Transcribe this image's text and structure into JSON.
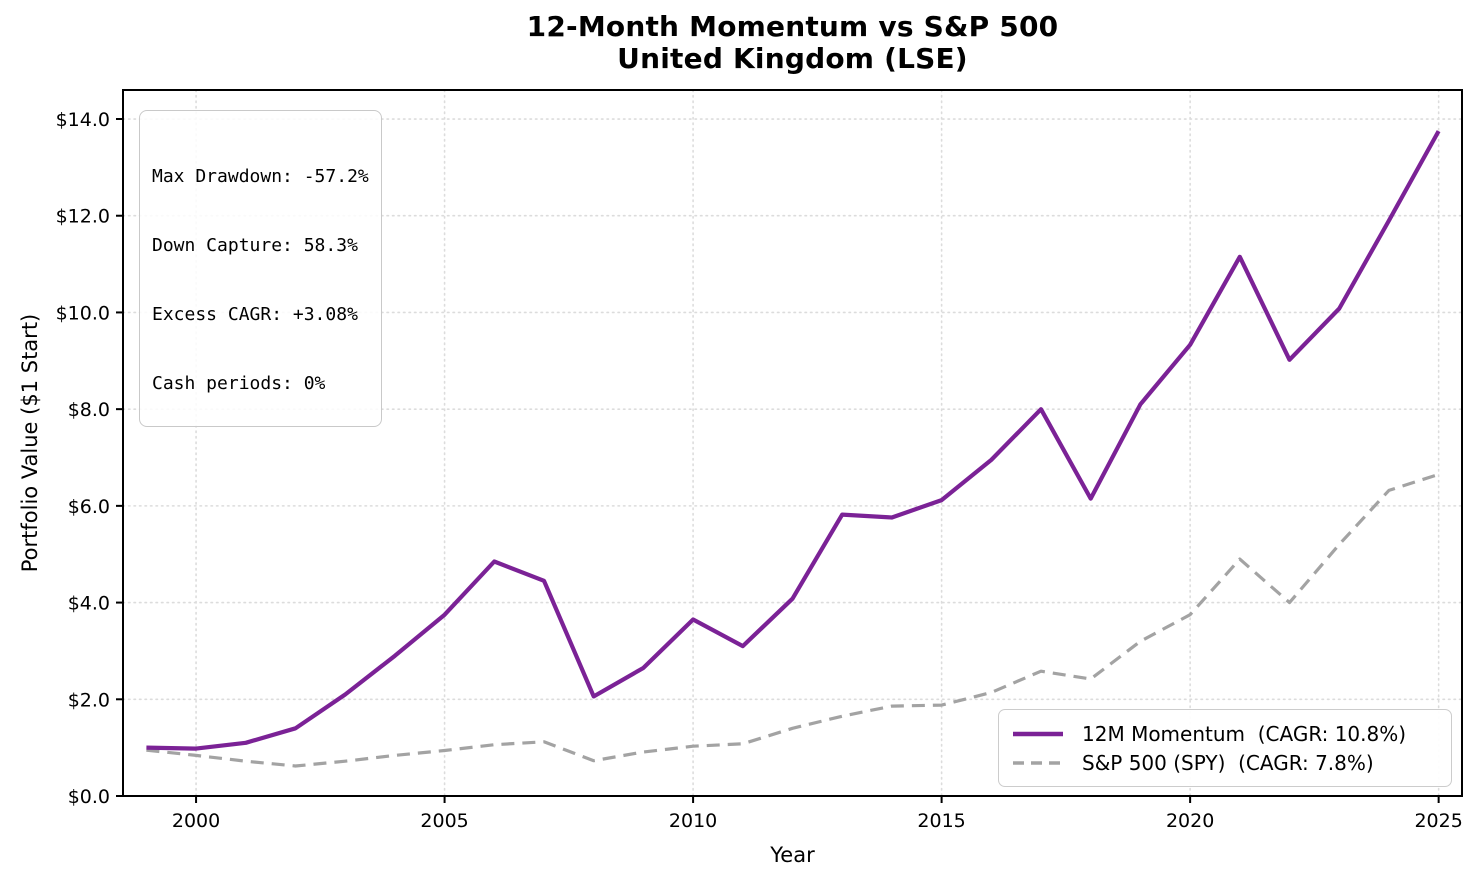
{
  "title": {
    "line1": "12-Month Momentum vs S&P 500",
    "line2": "United Kingdom (LSE)"
  },
  "stats_box": {
    "lines": [
      "Max Drawdown: -57.2%",
      "Down Capture: 58.3%",
      "Excess CAGR: +3.08%",
      "Cash periods: 0%"
    ]
  },
  "legend": {
    "position": "lower right",
    "items": [
      {
        "label": "12M Momentum  (CAGR: 10.8%)",
        "style": "solid",
        "color": "#7b2296"
      },
      {
        "label": "S&P 500 (SPY)  (CAGR: 7.8%)",
        "style": "dashed",
        "color": "#a3a3a3"
      }
    ]
  },
  "axes": {
    "xlabel": "Year",
    "ylabel": "Portfolio Value ($1 Start)"
  },
  "chart_data": {
    "type": "line",
    "title": "12-Month Momentum vs S&P 500 — United Kingdom (LSE)",
    "xlabel": "Year",
    "ylabel": "Portfolio Value ($1 Start)",
    "grid": true,
    "legend_position": "lower right",
    "x": [
      1999,
      2000,
      2001,
      2002,
      2003,
      2004,
      2005,
      2006,
      2007,
      2008,
      2009,
      2010,
      2011,
      2012,
      2013,
      2014,
      2015,
      2016,
      2017,
      2018,
      2019,
      2020,
      2021,
      2022,
      2023,
      2024,
      2025
    ],
    "series": [
      {
        "name": "12M Momentum  (CAGR: 10.8%)",
        "color": "#7b2296",
        "line_style": "solid",
        "line_width": 4.2,
        "values": [
          1.0,
          0.98,
          1.1,
          1.4,
          2.1,
          2.9,
          3.75,
          4.85,
          4.45,
          2.06,
          2.65,
          3.65,
          3.1,
          4.08,
          5.82,
          5.76,
          6.12,
          6.95,
          8.0,
          6.15,
          8.1,
          9.33,
          11.15,
          9.02,
          10.08,
          11.9,
          13.75
        ]
      },
      {
        "name": "S&P 500 (SPY)  (CAGR: 7.8%)",
        "color": "#a3a3a3",
        "line_style": "dashed",
        "line_width": 3.2,
        "values": [
          0.95,
          0.84,
          0.72,
          0.62,
          0.72,
          0.84,
          0.94,
          1.06,
          1.12,
          0.73,
          0.91,
          1.03,
          1.08,
          1.4,
          1.65,
          1.86,
          1.88,
          2.14,
          2.58,
          2.42,
          3.2,
          3.75,
          4.9,
          4.0,
          5.2,
          6.32,
          6.65
        ]
      }
    ],
    "x_ticks": {
      "values": [
        2000,
        2005,
        2010,
        2015,
        2020,
        2025
      ],
      "labels": [
        "2000",
        "2005",
        "2010",
        "2015",
        "2020",
        "2025"
      ]
    },
    "y_ticks": {
      "values": [
        0,
        2,
        4,
        6,
        8,
        10,
        12,
        14
      ],
      "labels": [
        "$0.0",
        "$2.0",
        "$4.0",
        "$6.0",
        "$8.0",
        "$10.0",
        "$12.0",
        "$14.0"
      ]
    },
    "xlim": [
      1998.53,
      2025.47
    ],
    "ylim": [
      0,
      14.6
    ],
    "annotations": [
      "Max Drawdown: -57.2%",
      "Down Capture: 58.3%",
      "Excess CAGR: +3.08%",
      "Cash periods: 0%"
    ]
  }
}
